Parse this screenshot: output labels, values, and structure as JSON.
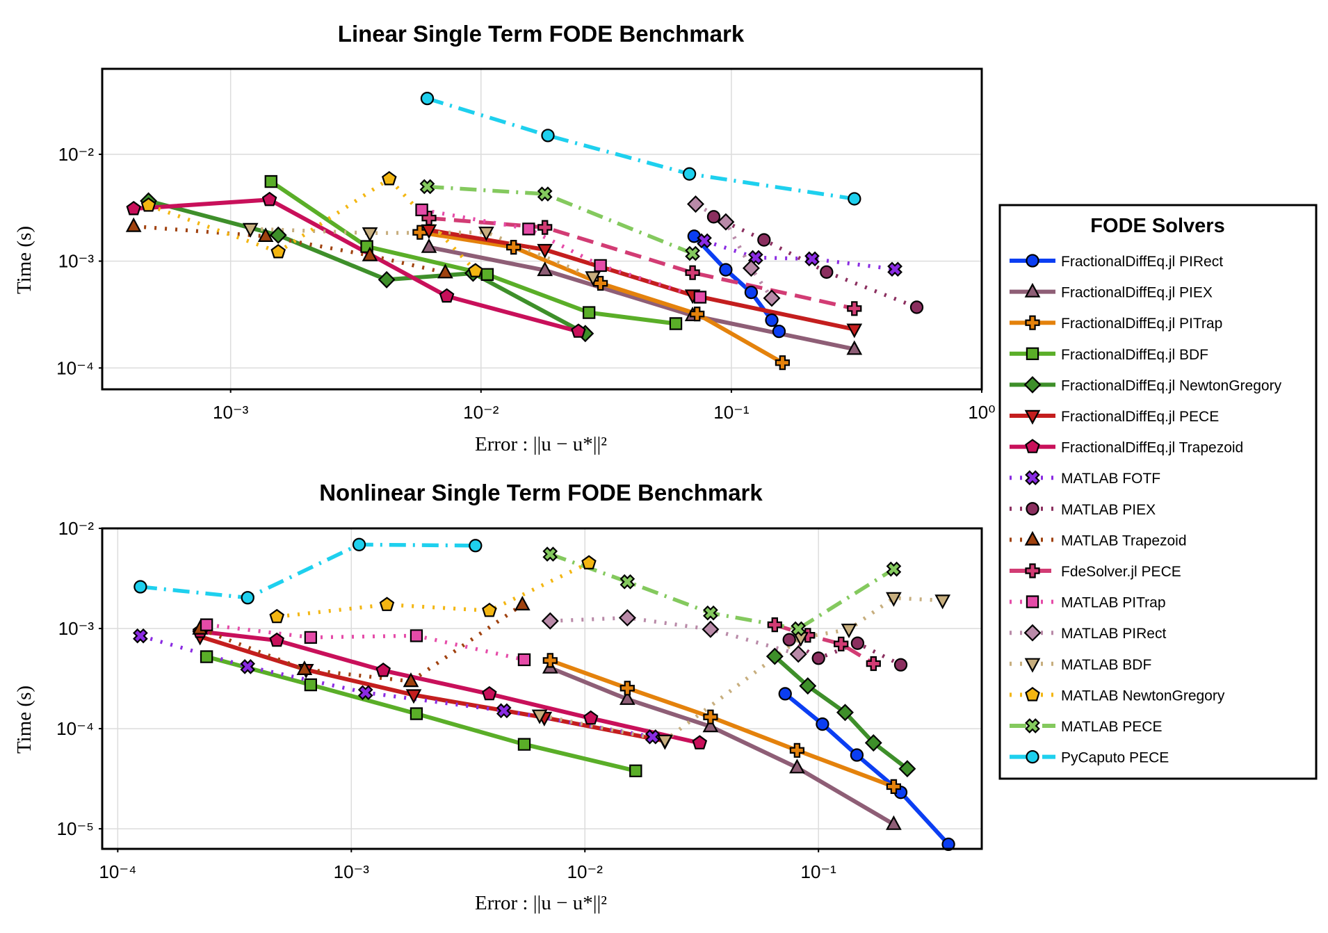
{
  "colors": {
    "FDE_PIRect": "#0b3ef2",
    "FDE_PIEX": "#8e5e76",
    "FDE_PITrap": "#e4820c",
    "FDE_BDF": "#5aae28",
    "FDE_NewtonGregory": "#3e8f2a",
    "FDE_PECE": "#c41e1e",
    "FDE_Trapezoid": "#c8105a",
    "M_FOTF": "#8a2be2",
    "M_PIEX": "#8b2f5f",
    "M_Trapezoid": "#a0420f",
    "Fde_PECE": "#d23c74",
    "M_PITrap": "#e54ba8",
    "M_PIRect": "#b98aa8",
    "M_BDF": "#c7ae7e",
    "M_NewtonGregory": "#f3b612",
    "M_PECE": "#84c95e",
    "Py_PECE": "#1ed0ee"
  },
  "legend": {
    "title": "FODE Solvers",
    "entries": [
      {
        "key": "FDE_PIRect",
        "label": "FractionalDiffEq.jl PIRect",
        "marker": "circle",
        "dash": "solid"
      },
      {
        "key": "FDE_PIEX",
        "label": "FractionalDiffEq.jl PIEX",
        "marker": "triangle",
        "dash": "solid"
      },
      {
        "key": "FDE_PITrap",
        "label": "FractionalDiffEq.jl PITrap",
        "marker": "cross",
        "dash": "solid"
      },
      {
        "key": "FDE_BDF",
        "label": "FractionalDiffEq.jl BDF",
        "marker": "square",
        "dash": "solid"
      },
      {
        "key": "FDE_NewtonGregory",
        "label": "FractionalDiffEq.jl NewtonGregory",
        "marker": "diamond",
        "dash": "solid"
      },
      {
        "key": "FDE_PECE",
        "label": "FractionalDiffEq.jl PECE",
        "marker": "dtriangle",
        "dash": "solid"
      },
      {
        "key": "FDE_Trapezoid",
        "label": "FractionalDiffEq.jl Trapezoid",
        "marker": "pentagon",
        "dash": "solid"
      },
      {
        "key": "M_FOTF",
        "label": "MATLAB FOTF",
        "marker": "xcross",
        "dash": "dot"
      },
      {
        "key": "M_PIEX",
        "label": "MATLAB PIEX",
        "marker": "circle",
        "dash": "dot"
      },
      {
        "key": "M_Trapezoid",
        "label": "MATLAB Trapezoid",
        "marker": "triangle",
        "dash": "dot"
      },
      {
        "key": "Fde_PECE",
        "label": "FdeSolver.jl PECE",
        "marker": "cross",
        "dash": "dash"
      },
      {
        "key": "M_PITrap",
        "label": "MATLAB PITrap",
        "marker": "square",
        "dash": "dot"
      },
      {
        "key": "M_PIRect",
        "label": "MATLAB PIRect",
        "marker": "diamond",
        "dash": "dot"
      },
      {
        "key": "M_BDF",
        "label": "MATLAB BDF",
        "marker": "dtriangle",
        "dash": "dot"
      },
      {
        "key": "M_NewtonGregory",
        "label": "MATLAB NewtonGregory",
        "marker": "pentagon",
        "dash": "dot"
      },
      {
        "key": "M_PECE",
        "label": "MATLAB PECE",
        "marker": "xcross",
        "dash": "dashdot"
      },
      {
        "key": "Py_PECE",
        "label": "PyCaputo PECE",
        "marker": "circle",
        "dash": "dashdot"
      }
    ]
  },
  "chart_data": [
    {
      "type": "line",
      "title": "Linear Single Term FODE Benchmark",
      "xlabel": "Error :  ||u − u*||²",
      "ylabel": "Time (s)",
      "xscale": "log",
      "yscale": "log",
      "xlim": [
        0.000307,
        1.0
      ],
      "ylim": [
        6.31e-05,
        0.0631
      ],
      "xticks": [
        {
          "v": 0.001,
          "label": "10⁻³"
        },
        {
          "v": 0.01,
          "label": "10⁻²"
        },
        {
          "v": 0.1,
          "label": "10⁻¹"
        },
        {
          "v": 1,
          "label": "10⁰"
        }
      ],
      "yticks": [
        {
          "v": 0.0001,
          "label": "10⁻⁴"
        },
        {
          "v": 0.001,
          "label": "10⁻³"
        },
        {
          "v": 0.01,
          "label": "10⁻²"
        }
      ],
      "grid": true,
      "series": [
        {
          "key": "FDE_PIRect",
          "x": [
            0.071,
            0.095,
            0.12,
            0.145,
            0.155
          ],
          "y": [
            0.00171,
            0.00083,
            0.00051,
            0.00028,
            0.00022
          ]
        },
        {
          "key": "FDE_PIEX",
          "x": [
            0.0062,
            0.018,
            0.07,
            0.31
          ],
          "y": [
            0.00135,
            0.00082,
            0.00031,
            0.00015
          ]
        },
        {
          "key": "FDE_PITrap",
          "x": [
            0.0057,
            0.0135,
            0.03,
            0.073,
            0.16
          ],
          "y": [
            0.00186,
            0.00135,
            0.00062,
            0.00032,
            0.000112
          ]
        },
        {
          "key": "FDE_BDF",
          "x": [
            0.00145,
            0.0035,
            0.0106,
            0.027,
            0.06
          ],
          "y": [
            0.00556,
            0.00137,
            0.00075,
            0.00033,
            0.00026
          ]
        },
        {
          "key": "FDE_NewtonGregory",
          "x": [
            0.00047,
            0.00155,
            0.0042,
            0.0093,
            0.0261
          ],
          "y": [
            0.00366,
            0.00175,
            0.00067,
            0.00077,
            0.00021
          ]
        },
        {
          "key": "FDE_PECE",
          "x": [
            0.0062,
            0.018,
            0.07,
            0.31
          ],
          "y": [
            0.00195,
            0.00128,
            0.00048,
            0.00023
          ]
        },
        {
          "key": "FDE_Trapezoid",
          "x": [
            0.00041,
            0.00143,
            0.0073,
            0.0245
          ],
          "y": [
            0.00309,
            0.00376,
            0.00047,
            0.00022
          ]
        },
        {
          "key": "M_FOTF",
          "x": [
            0.078,
            0.125,
            0.21,
            0.45
          ],
          "y": [
            0.00155,
            0.00108,
            0.00105,
            0.00084
          ]
        },
        {
          "key": "M_PIEX",
          "x": [
            0.085,
            0.135,
            0.24,
            0.55
          ],
          "y": [
            0.0026,
            0.00158,
            0.00079,
            0.00037
          ]
        },
        {
          "key": "M_Trapezoid",
          "x": [
            0.00041,
            0.00138,
            0.0036,
            0.0072
          ],
          "y": [
            0.00212,
            0.00171,
            0.00113,
            0.00078
          ]
        },
        {
          "key": "Fde_PECE",
          "x": [
            0.0062,
            0.018,
            0.07,
            0.31
          ],
          "y": [
            0.00253,
            0.00207,
            0.00078,
            0.00036
          ]
        },
        {
          "key": "M_PITrap",
          "x": [
            0.0058,
            0.0155,
            0.03,
            0.075
          ],
          "y": [
            0.00302,
            0.002,
            0.00091,
            0.00046
          ]
        },
        {
          "key": "M_PIRect",
          "x": [
            0.072,
            0.095,
            0.12,
            0.145
          ],
          "y": [
            0.00342,
            0.00233,
            0.00086,
            0.00045
          ]
        },
        {
          "key": "M_BDF",
          "x": [
            0.0012,
            0.0036,
            0.0105,
            0.028
          ],
          "y": [
            0.00201,
            0.00183,
            0.00186,
            0.00071
          ]
        },
        {
          "key": "M_NewtonGregory",
          "x": [
            0.00047,
            0.00155,
            0.0043,
            0.0095
          ],
          "y": [
            0.00333,
            0.00122,
            0.00588,
            0.00081
          ]
        },
        {
          "key": "M_PECE",
          "x": [
            0.0061,
            0.018,
            0.07
          ],
          "y": [
            0.00498,
            0.00425,
            0.00118
          ]
        },
        {
          "key": "Py_PECE",
          "x": [
            0.0061,
            0.0185,
            0.068,
            0.31
          ],
          "y": [
            0.0333,
            0.015,
            0.00655,
            0.00383
          ]
        }
      ]
    },
    {
      "type": "line",
      "title": "Nonlinear Single Term FODE Benchmark",
      "xlabel": "Error :  ||u − u*||²",
      "ylabel": "Time (s)",
      "xscale": "log",
      "yscale": "log",
      "xlim": [
        8.58e-05,
        0.5
      ],
      "ylim": [
        6.3e-06,
        0.01
      ],
      "xticks": [
        {
          "v": 0.0001,
          "label": "10⁻⁴"
        },
        {
          "v": 0.001,
          "label": "10⁻³"
        },
        {
          "v": 0.01,
          "label": "10⁻²"
        },
        {
          "v": 0.1,
          "label": "10⁻¹"
        }
      ],
      "yticks": [
        {
          "v": 1e-05,
          "label": "10⁻⁵"
        },
        {
          "v": 0.0001,
          "label": "10⁻⁴"
        },
        {
          "v": 0.001,
          "label": "10⁻³"
        },
        {
          "v": 0.01,
          "label": "10⁻²"
        }
      ],
      "grid": true,
      "series": [
        {
          "key": "FDE_PIRect",
          "x": [
            0.072,
            0.104,
            0.146,
            0.225,
            0.36
          ],
          "y": [
            0.000223,
            0.000111,
            5.45e-05,
            2.31e-05,
            7e-06
          ]
        },
        {
          "key": "FDE_PIEX",
          "x": [
            0.0071,
            0.0152,
            0.0345,
            0.081,
            0.21
          ],
          "y": [
            0.000405,
            0.000197,
            0.000105,
            4.08e-05,
            1.11e-05
          ]
        },
        {
          "key": "FDE_PITrap",
          "x": [
            0.0071,
            0.0152,
            0.0345,
            0.081,
            0.21
          ],
          "y": [
            0.00048,
            0.000254,
            0.000131,
            6.07e-05,
            2.64e-05
          ]
        },
        {
          "key": "FDE_BDF",
          "x": [
            0.00024,
            0.00067,
            0.0019,
            0.0055,
            0.0165
          ],
          "y": [
            0.000523,
            0.000274,
            0.000141,
            6.97e-05,
            3.79e-05
          ]
        },
        {
          "key": "FDE_NewtonGregory",
          "x": [
            0.065,
            0.09,
            0.13,
            0.172,
            0.24
          ],
          "y": [
            0.000527,
            0.000267,
            0.000145,
            7.21e-05,
            3.98e-05
          ]
        },
        {
          "key": "FDE_PECE",
          "x": [
            0.000225,
            0.00064,
            0.00185,
            0.0067,
            0.022
          ],
          "y": [
            0.000831,
            0.000388,
            0.000217,
            0.000129,
            7.53e-05
          ]
        },
        {
          "key": "FDE_Trapezoid",
          "x": [
            0.000225,
            0.00048,
            0.00137,
            0.0039,
            0.0106,
            0.031
          ],
          "y": [
            0.000932,
            0.000761,
            0.000381,
            0.000222,
            0.000127,
            7.19e-05
          ]
        },
        {
          "key": "M_FOTF",
          "x": [
            0.000125,
            0.00036,
            0.00115,
            0.0045,
            0.0195
          ],
          "y": [
            0.000844,
            0.000416,
            0.000229,
            0.000151,
            8.28e-05
          ]
        },
        {
          "key": "M_PIEX",
          "x": [
            0.075,
            0.1,
            0.147,
            0.225
          ],
          "y": [
            0.000773,
            0.000505,
            0.000713,
            0.000434
          ]
        },
        {
          "key": "M_Trapezoid",
          "x": [
            0.000225,
            0.00063,
            0.0018,
            0.0054
          ],
          "y": [
            0.000993,
            0.000391,
            0.000297,
            0.00173
          ]
        },
        {
          "key": "Fde_PECE",
          "x": [
            0.065,
            0.09,
            0.125,
            0.172
          ],
          "y": [
            0.00109,
            0.000856,
            0.000701,
            0.000446
          ]
        },
        {
          "key": "M_PITrap",
          "x": [
            0.00024,
            0.00067,
            0.0019,
            0.0055
          ],
          "y": [
            0.00109,
            0.000815,
            0.000847,
            0.000488
          ]
        },
        {
          "key": "M_PIRect",
          "x": [
            0.0071,
            0.0152,
            0.0345,
            0.082
          ],
          "y": [
            0.00119,
            0.00128,
            0.000982,
            0.000555
          ]
        },
        {
          "key": "M_BDF",
          "x": [
            0.0064,
            0.022,
            0.084,
            0.135,
            0.21,
            0.34
          ],
          "y": [
            0.000136,
            7.63e-05,
            0.000808,
            0.00098,
            0.00202,
            0.00191
          ]
        },
        {
          "key": "M_NewtonGregory",
          "x": [
            0.00048,
            0.00142,
            0.0039,
            0.0104
          ],
          "y": [
            0.00131,
            0.00173,
            0.00151,
            0.00451
          ]
        },
        {
          "key": "M_PECE",
          "x": [
            0.0071,
            0.0152,
            0.0345,
            0.082,
            0.21
          ],
          "y": [
            0.00553,
            0.00293,
            0.00143,
            0.000993,
            0.00392
          ]
        },
        {
          "key": "Py_PECE",
          "x": [
            0.000125,
            0.00036,
            0.00108,
            0.0034
          ],
          "y": [
            0.00261,
            0.00203,
            0.00689,
            0.00673
          ]
        }
      ]
    }
  ]
}
